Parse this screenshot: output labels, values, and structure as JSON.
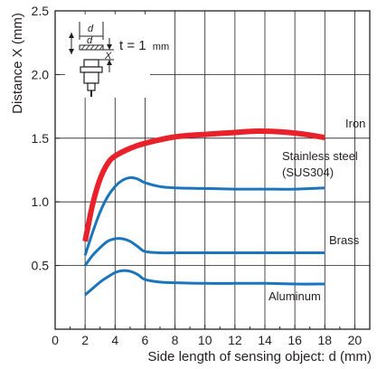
{
  "chart_data": {
    "type": "line",
    "xlabel": "Side length of sensing object: d (mm)",
    "ylabel": "Distance X (mm)",
    "xlim": [
      0,
      21
    ],
    "ylim": [
      0,
      2.5
    ],
    "x_ticks": [
      "0",
      "2",
      "4",
      "6",
      "8",
      "10",
      "12",
      "14",
      "16",
      "18",
      "20"
    ],
    "y_ticks": [
      "0.5",
      "1.0",
      "1.5",
      "2.0",
      "2.5"
    ],
    "grid": true,
    "inset": {
      "d_label": "d",
      "x_label": "X",
      "t_label": "t = 1",
      "t_unit": "mm"
    },
    "series": [
      {
        "name": "Iron",
        "color": "#e8212b",
        "x": [
          2,
          2.5,
          3,
          3.5,
          4,
          5,
          6,
          8,
          10,
          12,
          13.5,
          15,
          16,
          17,
          18
        ],
        "y": [
          0.69,
          0.98,
          1.18,
          1.3,
          1.36,
          1.42,
          1.46,
          1.51,
          1.53,
          1.545,
          1.555,
          1.55,
          1.54,
          1.525,
          1.505
        ]
      },
      {
        "name": "Stainless steel\n(SUS304)",
        "color": "#1a75bc",
        "x": [
          2,
          2.5,
          3,
          3.5,
          4,
          4.5,
          5,
          5.5,
          6,
          7,
          8,
          10,
          12,
          14,
          16,
          18
        ],
        "y": [
          0.58,
          0.76,
          0.92,
          1.04,
          1.12,
          1.17,
          1.19,
          1.18,
          1.15,
          1.12,
          1.11,
          1.105,
          1.1,
          1.1,
          1.1,
          1.11
        ]
      },
      {
        "name": "Brass",
        "color": "#1a75bc",
        "x": [
          2,
          2.5,
          3,
          3.5,
          4,
          4.5,
          5,
          5.5,
          6,
          7,
          8,
          10,
          12,
          14,
          16,
          18
        ],
        "y": [
          0.5,
          0.58,
          0.64,
          0.69,
          0.71,
          0.71,
          0.69,
          0.65,
          0.61,
          0.6,
          0.6,
          0.6,
          0.6,
          0.6,
          0.6,
          0.6
        ]
      },
      {
        "name": "Aluminum",
        "color": "#1a75bc",
        "x": [
          2,
          2.5,
          3,
          3.5,
          4,
          4.5,
          5,
          5.5,
          6,
          7,
          8,
          10,
          12,
          14,
          16,
          18
        ],
        "y": [
          0.27,
          0.32,
          0.37,
          0.41,
          0.445,
          0.46,
          0.455,
          0.43,
          0.39,
          0.37,
          0.365,
          0.36,
          0.36,
          0.36,
          0.355,
          0.355
        ]
      }
    ]
  }
}
